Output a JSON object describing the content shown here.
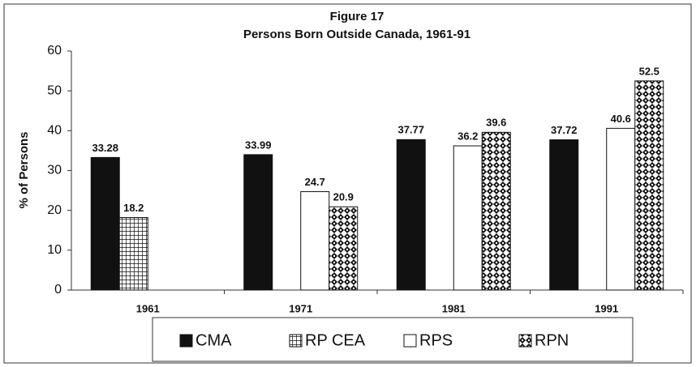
{
  "chart_data": {
    "type": "bar",
    "title": "Figure 17",
    "subtitle": "Persons Born Outside Canada, 1961-91",
    "y_label": "% of Persons",
    "categories": [
      "1961",
      "1971",
      "1981",
      "1991"
    ],
    "series": [
      {
        "name": "CMA",
        "color": "#111111",
        "pattern": "solid",
        "values": [
          33.28,
          33.99,
          37.77,
          37.72
        ]
      },
      {
        "name": "RP CEA",
        "color": "#111111",
        "pattern": "grid",
        "values": [
          18.2,
          null,
          null,
          null
        ]
      },
      {
        "name": "RPS",
        "color": "#ffffff",
        "pattern": "solid",
        "values": [
          null,
          24.7,
          36.2,
          40.6
        ]
      },
      {
        "name": "RPN",
        "color": "#111111",
        "pattern": "diamond",
        "values": [
          null,
          20.9,
          39.6,
          52.5
        ]
      }
    ],
    "ylim": [
      0,
      60
    ],
    "yticks": [
      0,
      10,
      20,
      30,
      40,
      50,
      60
    ],
    "grid": false
  }
}
